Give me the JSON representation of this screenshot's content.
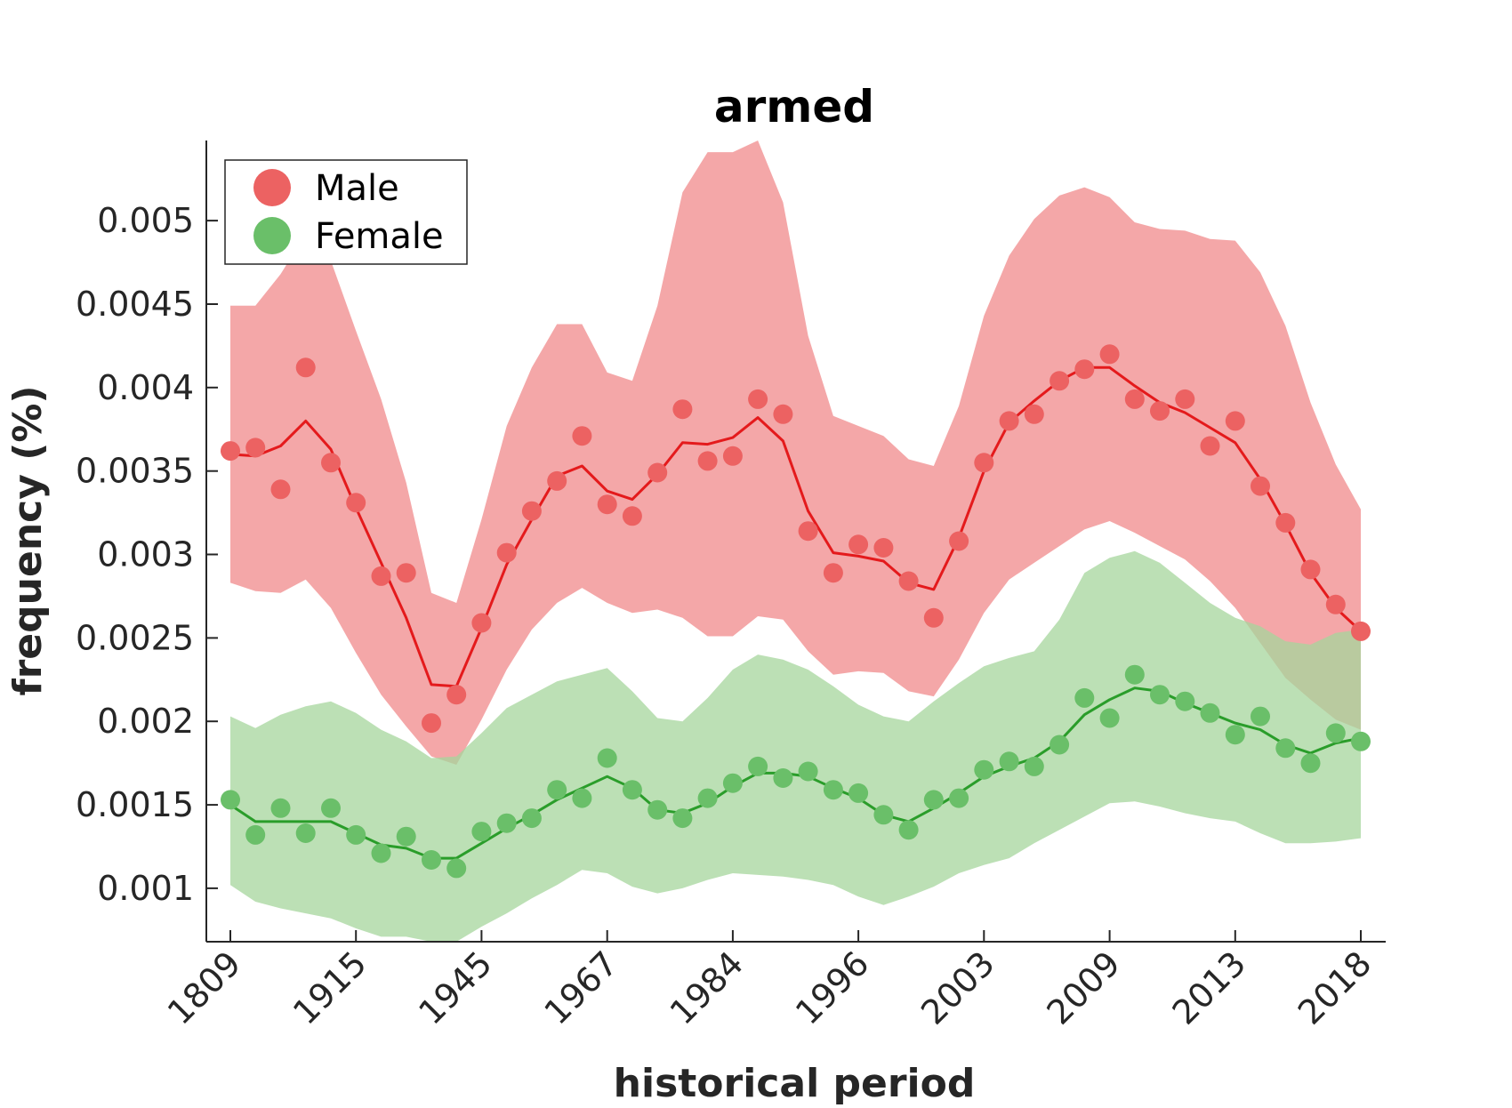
{
  "chart_data": {
    "type": "line",
    "title": "armed",
    "xlabel": "historical period",
    "ylabel": "frequency (%)",
    "x_tick_labels": [
      "1809",
      "1915",
      "1945",
      "1967",
      "1984",
      "1996",
      "2003",
      "2009",
      "2013",
      "2018"
    ],
    "y_ticks": [
      0.001,
      0.0015,
      0.002,
      0.0025,
      0.003,
      0.0035,
      0.004,
      0.0045,
      0.005
    ],
    "y_tick_labels": [
      "0.001",
      "0.0015",
      "0.002",
      "0.0025",
      "0.003",
      "0.0035",
      "0.004",
      "0.0045",
      "0.005"
    ],
    "ylim": [
      0.00068,
      0.00548
    ],
    "grid": false,
    "legend_position": "top-left",
    "series": [
      {
        "name": "Male",
        "color": "#e41a1c",
        "marker_color": "#ec6262",
        "band_color": "#f08a8b",
        "points": [
          0.00362,
          0.00364,
          0.00339,
          0.00412,
          0.00355,
          0.00331,
          0.00287,
          0.00289,
          0.00199,
          0.00216,
          0.00259,
          0.00301,
          0.00326,
          0.00344,
          0.00371,
          0.0033,
          0.00323,
          0.00349,
          0.00387,
          0.00356,
          0.00359,
          0.00393,
          0.00384,
          0.00314,
          0.00289,
          0.00306,
          0.00304,
          0.00284,
          0.00262,
          0.00308,
          0.00355,
          0.0038,
          0.00384,
          0.00404,
          0.00411,
          0.0042,
          0.00393,
          0.00386,
          0.00393,
          0.00365,
          0.0038,
          0.00341,
          0.00319,
          0.00291,
          0.0027,
          0.00254
        ],
        "smoothed": [
          0.0036,
          0.00359,
          0.00365,
          0.0038,
          0.00363,
          0.00328,
          0.00295,
          0.00262,
          0.00222,
          0.00221,
          0.00256,
          0.00294,
          0.00321,
          0.00347,
          0.00353,
          0.00338,
          0.00333,
          0.00348,
          0.00367,
          0.00366,
          0.0037,
          0.00382,
          0.00368,
          0.00326,
          0.00301,
          0.00299,
          0.00296,
          0.00283,
          0.00279,
          0.0031,
          0.0035,
          0.00379,
          0.00392,
          0.00404,
          0.00412,
          0.00412,
          0.00401,
          0.00391,
          0.00385,
          0.00376,
          0.00367,
          0.00345,
          0.00318,
          0.00289,
          0.00268,
          0.00254
        ],
        "upper": [
          0.00449,
          0.00449,
          0.00468,
          0.00492,
          0.00476,
          0.00434,
          0.00393,
          0.00343,
          0.00277,
          0.00271,
          0.00321,
          0.00377,
          0.00412,
          0.00438,
          0.00438,
          0.00409,
          0.00404,
          0.00449,
          0.00517,
          0.00541,
          0.00541,
          0.00548,
          0.00511,
          0.00431,
          0.00383,
          0.00377,
          0.00371,
          0.00357,
          0.00353,
          0.00389,
          0.00443,
          0.00479,
          0.00501,
          0.00515,
          0.0052,
          0.00514,
          0.00499,
          0.00495,
          0.00494,
          0.00489,
          0.00488,
          0.00469,
          0.00437,
          0.00391,
          0.00354,
          0.00327
        ],
        "lower": [
          0.00283,
          0.00278,
          0.00277,
          0.00285,
          0.00268,
          0.00241,
          0.00216,
          0.00197,
          0.00179,
          0.00174,
          0.00201,
          0.00231,
          0.00255,
          0.00271,
          0.0028,
          0.00271,
          0.00265,
          0.00267,
          0.00262,
          0.00251,
          0.00251,
          0.00263,
          0.00261,
          0.00242,
          0.00228,
          0.0023,
          0.00229,
          0.00218,
          0.00215,
          0.00237,
          0.00265,
          0.00285,
          0.00295,
          0.00305,
          0.00315,
          0.0032,
          0.00313,
          0.00305,
          0.00297,
          0.00284,
          0.00268,
          0.00247,
          0.00226,
          0.00213,
          0.00201,
          0.00195
        ]
      },
      {
        "name": "Female",
        "color": "#2a9d2a",
        "marker_color": "#6abf69",
        "band_color": "#a5d69c",
        "points": [
          0.00153,
          0.00132,
          0.00148,
          0.00133,
          0.00148,
          0.00132,
          0.00121,
          0.00131,
          0.00117,
          0.00112,
          0.00134,
          0.00139,
          0.00142,
          0.00159,
          0.00154,
          0.00178,
          0.00159,
          0.00147,
          0.00142,
          0.00154,
          0.00163,
          0.00173,
          0.00166,
          0.0017,
          0.00159,
          0.00157,
          0.00144,
          0.00135,
          0.00153,
          0.00154,
          0.00171,
          0.00176,
          0.00173,
          0.00186,
          0.00214,
          0.00202,
          0.00228,
          0.00216,
          0.00212,
          0.00205,
          0.00192,
          0.00203,
          0.00184,
          0.00175,
          0.00193,
          0.00188
        ],
        "smoothed": [
          0.0015,
          0.0014,
          0.0014,
          0.0014,
          0.0014,
          0.00133,
          0.00126,
          0.00124,
          0.00118,
          0.00118,
          0.00127,
          0.00136,
          0.00144,
          0.00153,
          0.0016,
          0.00167,
          0.0016,
          0.00147,
          0.00145,
          0.00151,
          0.00161,
          0.00169,
          0.00169,
          0.00167,
          0.0016,
          0.00154,
          0.00144,
          0.0014,
          0.00148,
          0.00157,
          0.00167,
          0.00173,
          0.00178,
          0.00188,
          0.00204,
          0.00213,
          0.0022,
          0.00218,
          0.00211,
          0.00205,
          0.00199,
          0.00195,
          0.00186,
          0.00181,
          0.00187,
          0.0019
        ],
        "upper": [
          0.00203,
          0.00196,
          0.00204,
          0.00209,
          0.00212,
          0.00205,
          0.00195,
          0.00188,
          0.00178,
          0.00179,
          0.00193,
          0.00208,
          0.00216,
          0.00224,
          0.00228,
          0.00232,
          0.00218,
          0.00202,
          0.002,
          0.00214,
          0.00231,
          0.0024,
          0.00237,
          0.00231,
          0.00221,
          0.0021,
          0.00203,
          0.002,
          0.00212,
          0.00223,
          0.00233,
          0.00238,
          0.00242,
          0.00261,
          0.00289,
          0.00298,
          0.00302,
          0.00295,
          0.00283,
          0.00271,
          0.00262,
          0.00257,
          0.00248,
          0.00246,
          0.00253,
          0.00255
        ],
        "lower": [
          0.00102,
          0.00092,
          0.00088,
          0.00085,
          0.00082,
          0.00076,
          0.00071,
          0.00071,
          0.00068,
          0.00068,
          0.00077,
          0.00085,
          0.00094,
          0.00102,
          0.00111,
          0.00109,
          0.00101,
          0.00097,
          0.001,
          0.00105,
          0.00109,
          0.00108,
          0.00107,
          0.00105,
          0.00102,
          0.00095,
          0.0009,
          0.00095,
          0.00101,
          0.00109,
          0.00114,
          0.00118,
          0.00127,
          0.00135,
          0.00143,
          0.00151,
          0.00152,
          0.00149,
          0.00145,
          0.00142,
          0.0014,
          0.00133,
          0.00127,
          0.00127,
          0.00128,
          0.0013
        ]
      }
    ]
  }
}
